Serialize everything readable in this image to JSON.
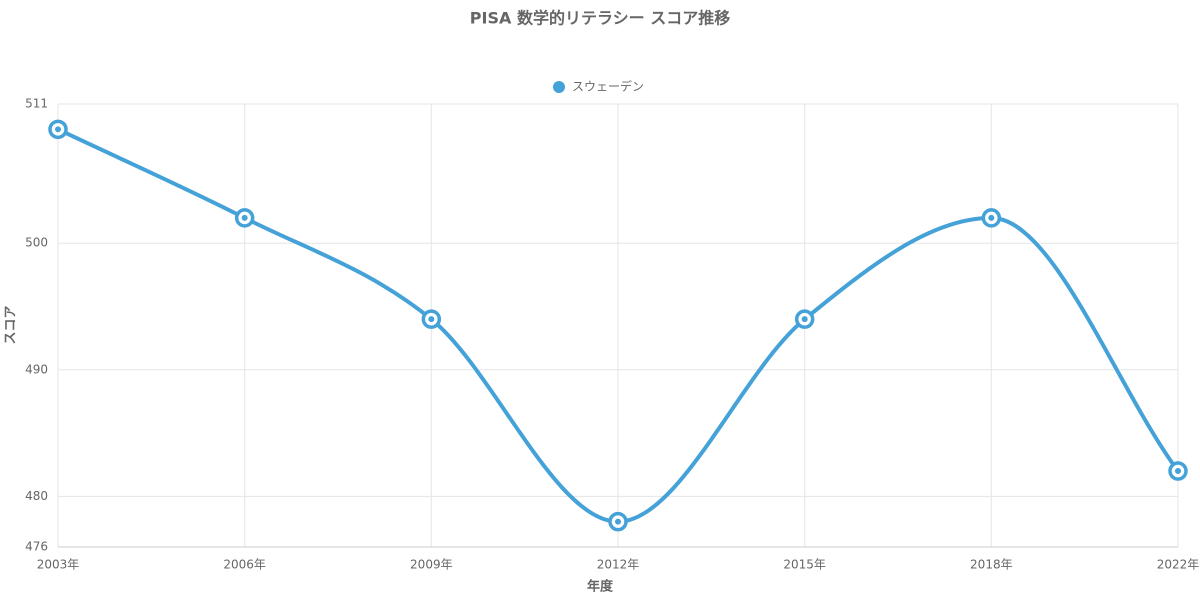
{
  "chart_data": {
    "type": "line",
    "title": "PISA 数学的リテラシー スコア推移",
    "x_label": "年度",
    "y_label": "スコア",
    "categories": [
      "2003年",
      "2006年",
      "2009年",
      "2012年",
      "2015年",
      "2018年",
      "2022年"
    ],
    "series": [
      {
        "name": "スウェーデン",
        "color": "#45a2d8",
        "values": [
          509,
          502,
          494,
          478,
          494,
          502,
          482
        ]
      }
    ],
    "ylim": [
      476,
      511
    ],
    "yticks": [
      476,
      480,
      490,
      500,
      511
    ],
    "grid": true,
    "legend": "top"
  }
}
